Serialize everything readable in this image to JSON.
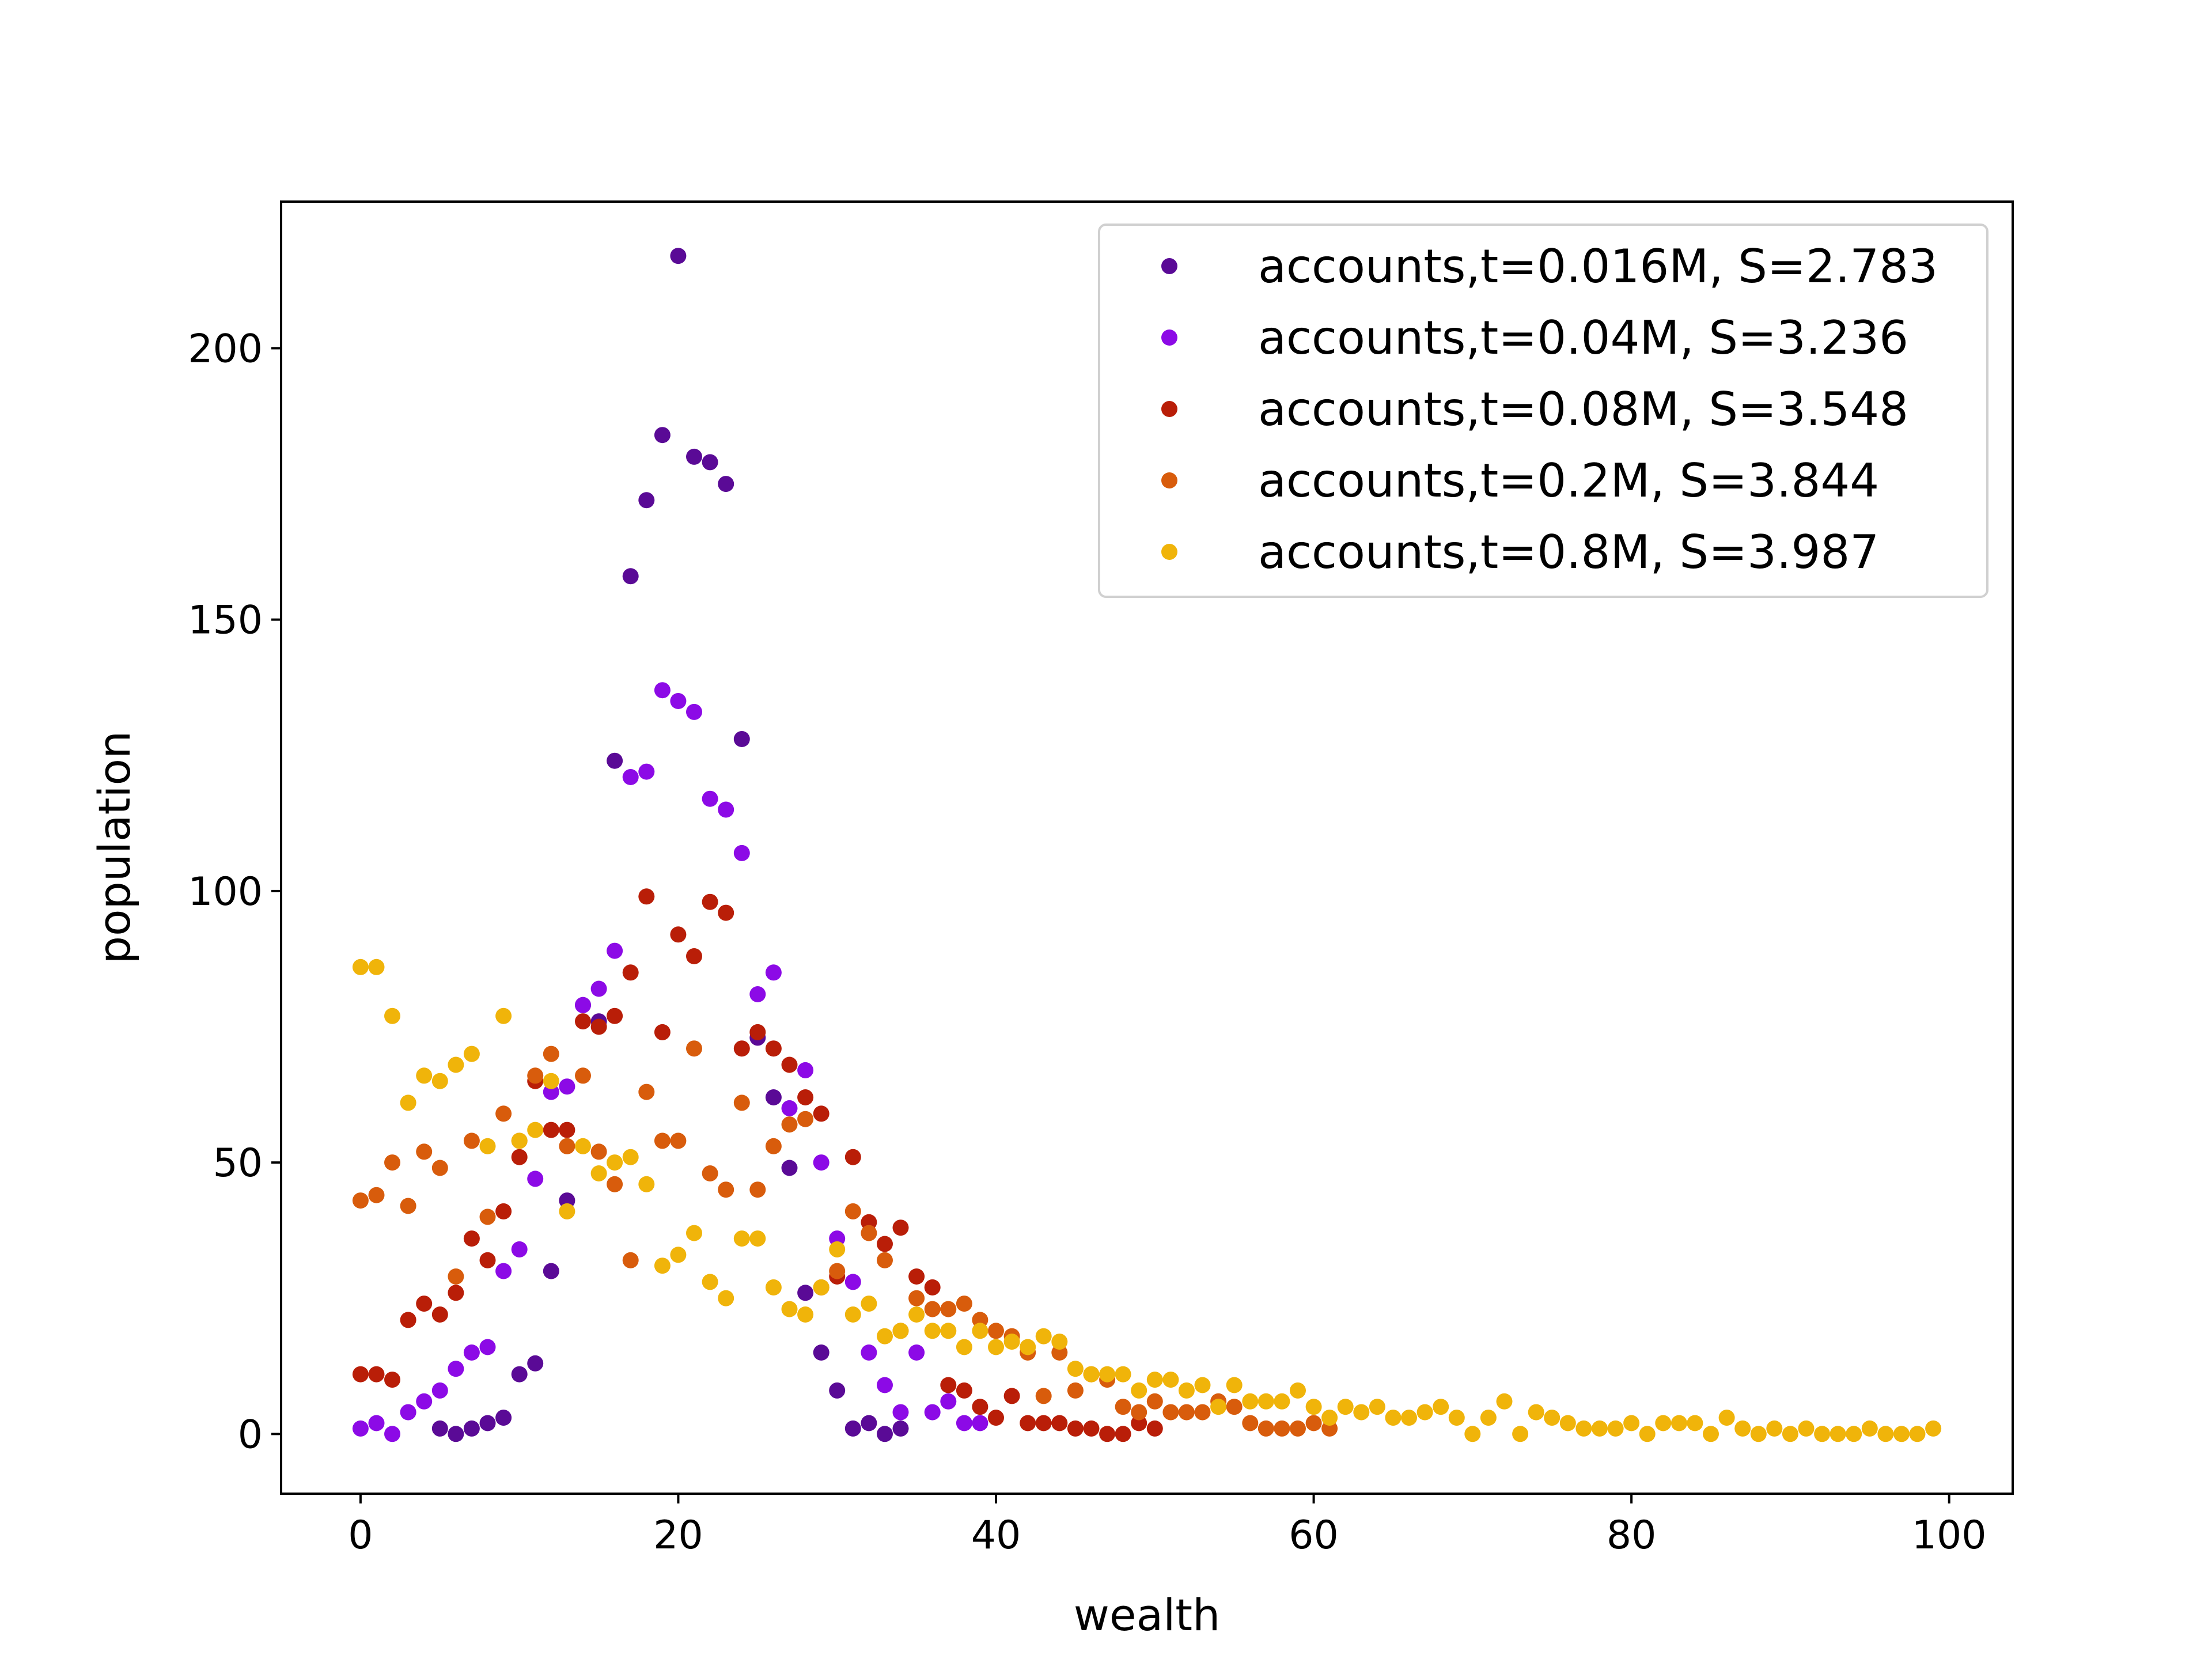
{
  "chart_data": {
    "type": "scatter",
    "title": "",
    "xlabel": "wealth",
    "ylabel": "population",
    "xlim": [
      -5,
      104
    ],
    "ylim": [
      -11,
      227
    ],
    "xticks": [
      0,
      20,
      40,
      60,
      80,
      100
    ],
    "yticks": [
      0,
      50,
      100,
      150,
      200
    ],
    "grid": false,
    "legend_position": "top-right",
    "series": [
      {
        "name": "accounts,t=0.016M, S=2.783",
        "color": "#5a0a96",
        "points": [
          [
            5,
            1
          ],
          [
            6,
            0
          ],
          [
            7,
            1
          ],
          [
            8,
            2
          ],
          [
            9,
            3
          ],
          [
            10,
            11
          ],
          [
            11,
            13
          ],
          [
            12,
            30
          ],
          [
            13,
            43
          ],
          [
            14,
            79
          ],
          [
            15,
            76
          ],
          [
            16,
            124
          ],
          [
            17,
            158
          ],
          [
            18,
            172
          ],
          [
            19,
            184
          ],
          [
            20,
            217
          ],
          [
            21,
            180
          ],
          [
            22,
            179
          ],
          [
            23,
            175
          ],
          [
            24,
            128
          ],
          [
            25,
            73
          ],
          [
            26,
            62
          ],
          [
            27,
            49
          ],
          [
            28,
            26
          ],
          [
            29,
            15
          ],
          [
            30,
            8
          ],
          [
            31,
            1
          ],
          [
            32,
            2
          ],
          [
            33,
            0
          ],
          [
            34,
            1
          ]
        ]
      },
      {
        "name": "accounts,t=0.04M, S=3.236",
        "color": "#8c0ae6",
        "points": [
          [
            0,
            1
          ],
          [
            1,
            2
          ],
          [
            2,
            0
          ],
          [
            3,
            4
          ],
          [
            4,
            6
          ],
          [
            5,
            8
          ],
          [
            6,
            12
          ],
          [
            7,
            15
          ],
          [
            8,
            16
          ],
          [
            9,
            30
          ],
          [
            10,
            34
          ],
          [
            11,
            47
          ],
          [
            12,
            63
          ],
          [
            13,
            64
          ],
          [
            14,
            79
          ],
          [
            15,
            82
          ],
          [
            16,
            89
          ],
          [
            17,
            121
          ],
          [
            18,
            122
          ],
          [
            19,
            137
          ],
          [
            20,
            135
          ],
          [
            21,
            133
          ],
          [
            22,
            117
          ],
          [
            23,
            115
          ],
          [
            24,
            107
          ],
          [
            25,
            81
          ],
          [
            26,
            85
          ],
          [
            27,
            60
          ],
          [
            28,
            67
          ],
          [
            29,
            50
          ],
          [
            30,
            36
          ],
          [
            31,
            28
          ],
          [
            32,
            15
          ],
          [
            33,
            9
          ],
          [
            34,
            4
          ],
          [
            35,
            15
          ],
          [
            36,
            4
          ],
          [
            37,
            6
          ],
          [
            38,
            2
          ],
          [
            39,
            2
          ]
        ]
      },
      {
        "name": "accounts,t=0.08M, S=3.548",
        "color": "#b91e08",
        "points": [
          [
            0,
            11
          ],
          [
            1,
            11
          ],
          [
            2,
            10
          ],
          [
            3,
            21
          ],
          [
            4,
            24
          ],
          [
            5,
            22
          ],
          [
            6,
            26
          ],
          [
            7,
            36
          ],
          [
            8,
            32
          ],
          [
            9,
            41
          ],
          [
            10,
            51
          ],
          [
            11,
            65
          ],
          [
            12,
            56
          ],
          [
            13,
            56
          ],
          [
            14,
            76
          ],
          [
            15,
            75
          ],
          [
            16,
            77
          ],
          [
            17,
            85
          ],
          [
            18,
            99
          ],
          [
            19,
            74
          ],
          [
            20,
            92
          ],
          [
            21,
            88
          ],
          [
            22,
            98
          ],
          [
            23,
            96
          ],
          [
            24,
            71
          ],
          [
            25,
            74
          ],
          [
            26,
            71
          ],
          [
            27,
            68
          ],
          [
            28,
            62
          ],
          [
            29,
            59
          ],
          [
            30,
            29
          ],
          [
            31,
            51
          ],
          [
            32,
            39
          ],
          [
            33,
            35
          ],
          [
            34,
            38
          ],
          [
            35,
            29
          ],
          [
            36,
            27
          ],
          [
            37,
            9
          ],
          [
            38,
            8
          ],
          [
            39,
            5
          ],
          [
            40,
            3
          ],
          [
            41,
            7
          ],
          [
            42,
            2
          ],
          [
            43,
            2
          ],
          [
            44,
            2
          ],
          [
            45,
            1
          ],
          [
            46,
            1
          ],
          [
            47,
            0
          ],
          [
            48,
            0
          ],
          [
            49,
            2
          ],
          [
            50,
            1
          ]
        ]
      },
      {
        "name": "accounts,t=0.2M, S=3.844",
        "color": "#d85c0c",
        "points": [
          [
            0,
            43
          ],
          [
            1,
            44
          ],
          [
            2,
            50
          ],
          [
            3,
            42
          ],
          [
            4,
            52
          ],
          [
            5,
            49
          ],
          [
            6,
            29
          ],
          [
            7,
            54
          ],
          [
            8,
            40
          ],
          [
            9,
            59
          ],
          [
            10,
            54
          ],
          [
            11,
            66
          ],
          [
            12,
            70
          ],
          [
            13,
            53
          ],
          [
            14,
            66
          ],
          [
            15,
            52
          ],
          [
            16,
            46
          ],
          [
            17,
            32
          ],
          [
            18,
            63
          ],
          [
            19,
            54
          ],
          [
            20,
            54
          ],
          [
            21,
            71
          ],
          [
            22,
            48
          ],
          [
            23,
            45
          ],
          [
            24,
            61
          ],
          [
            25,
            45
          ],
          [
            26,
            53
          ],
          [
            27,
            57
          ],
          [
            28,
            58
          ],
          [
            29,
            27
          ],
          [
            30,
            30
          ],
          [
            31,
            41
          ],
          [
            32,
            37
          ],
          [
            33,
            32
          ],
          [
            34,
            19
          ],
          [
            35,
            25
          ],
          [
            36,
            23
          ],
          [
            37,
            23
          ],
          [
            38,
            24
          ],
          [
            39,
            21
          ],
          [
            40,
            19
          ],
          [
            41,
            18
          ],
          [
            42,
            15
          ],
          [
            43,
            7
          ],
          [
            44,
            15
          ],
          [
            45,
            8
          ],
          [
            46,
            11
          ],
          [
            47,
            10
          ],
          [
            48,
            5
          ],
          [
            49,
            4
          ],
          [
            50,
            6
          ],
          [
            51,
            4
          ],
          [
            52,
            4
          ],
          [
            53,
            4
          ],
          [
            54,
            6
          ],
          [
            55,
            5
          ],
          [
            56,
            2
          ],
          [
            57,
            1
          ],
          [
            58,
            1
          ],
          [
            59,
            1
          ],
          [
            60,
            2
          ],
          [
            61,
            1
          ]
        ]
      },
      {
        "name": "accounts,t=0.8M, S=3.987",
        "color": "#f0b40a",
        "points": [
          [
            0,
            86
          ],
          [
            1,
            86
          ],
          [
            2,
            77
          ],
          [
            3,
            61
          ],
          [
            4,
            66
          ],
          [
            5,
            65
          ],
          [
            6,
            68
          ],
          [
            7,
            70
          ],
          [
            8,
            53
          ],
          [
            9,
            77
          ],
          [
            10,
            54
          ],
          [
            11,
            56
          ],
          [
            12,
            65
          ],
          [
            13,
            41
          ],
          [
            14,
            53
          ],
          [
            15,
            48
          ],
          [
            16,
            50
          ],
          [
            17,
            51
          ],
          [
            18,
            46
          ],
          [
            19,
            31
          ],
          [
            20,
            33
          ],
          [
            21,
            37
          ],
          [
            22,
            28
          ],
          [
            23,
            25
          ],
          [
            24,
            36
          ],
          [
            25,
            36
          ],
          [
            26,
            27
          ],
          [
            27,
            23
          ],
          [
            28,
            22
          ],
          [
            29,
            27
          ],
          [
            30,
            34
          ],
          [
            31,
            22
          ],
          [
            32,
            24
          ],
          [
            33,
            18
          ],
          [
            34,
            19
          ],
          [
            35,
            22
          ],
          [
            36,
            19
          ],
          [
            37,
            19
          ],
          [
            38,
            16
          ],
          [
            39,
            19
          ],
          [
            40,
            16
          ],
          [
            41,
            17
          ],
          [
            42,
            16
          ],
          [
            43,
            18
          ],
          [
            44,
            17
          ],
          [
            45,
            12
          ],
          [
            46,
            11
          ],
          [
            47,
            11
          ],
          [
            48,
            11
          ],
          [
            49,
            8
          ],
          [
            50,
            10
          ],
          [
            51,
            10
          ],
          [
            52,
            8
          ],
          [
            53,
            9
          ],
          [
            54,
            5
          ],
          [
            55,
            9
          ],
          [
            56,
            6
          ],
          [
            57,
            6
          ],
          [
            58,
            6
          ],
          [
            59,
            8
          ],
          [
            60,
            5
          ],
          [
            61,
            3
          ],
          [
            62,
            5
          ],
          [
            63,
            4
          ],
          [
            64,
            5
          ],
          [
            65,
            3
          ],
          [
            66,
            3
          ],
          [
            67,
            4
          ],
          [
            68,
            5
          ],
          [
            69,
            3
          ],
          [
            70,
            0
          ],
          [
            71,
            3
          ],
          [
            72,
            6
          ],
          [
            73,
            0
          ],
          [
            74,
            4
          ],
          [
            75,
            3
          ],
          [
            76,
            2
          ],
          [
            77,
            1
          ],
          [
            78,
            1
          ],
          [
            79,
            1
          ],
          [
            80,
            2
          ],
          [
            81,
            0
          ],
          [
            82,
            2
          ],
          [
            83,
            2
          ],
          [
            84,
            2
          ],
          [
            85,
            0
          ],
          [
            86,
            3
          ],
          [
            87,
            1
          ],
          [
            88,
            0
          ],
          [
            89,
            1
          ],
          [
            90,
            0
          ],
          [
            91,
            1
          ],
          [
            92,
            0
          ],
          [
            93,
            0
          ],
          [
            94,
            0
          ],
          [
            95,
            1
          ],
          [
            96,
            0
          ],
          [
            97,
            0
          ],
          [
            98,
            0
          ],
          [
            99,
            1
          ]
        ]
      }
    ]
  }
}
